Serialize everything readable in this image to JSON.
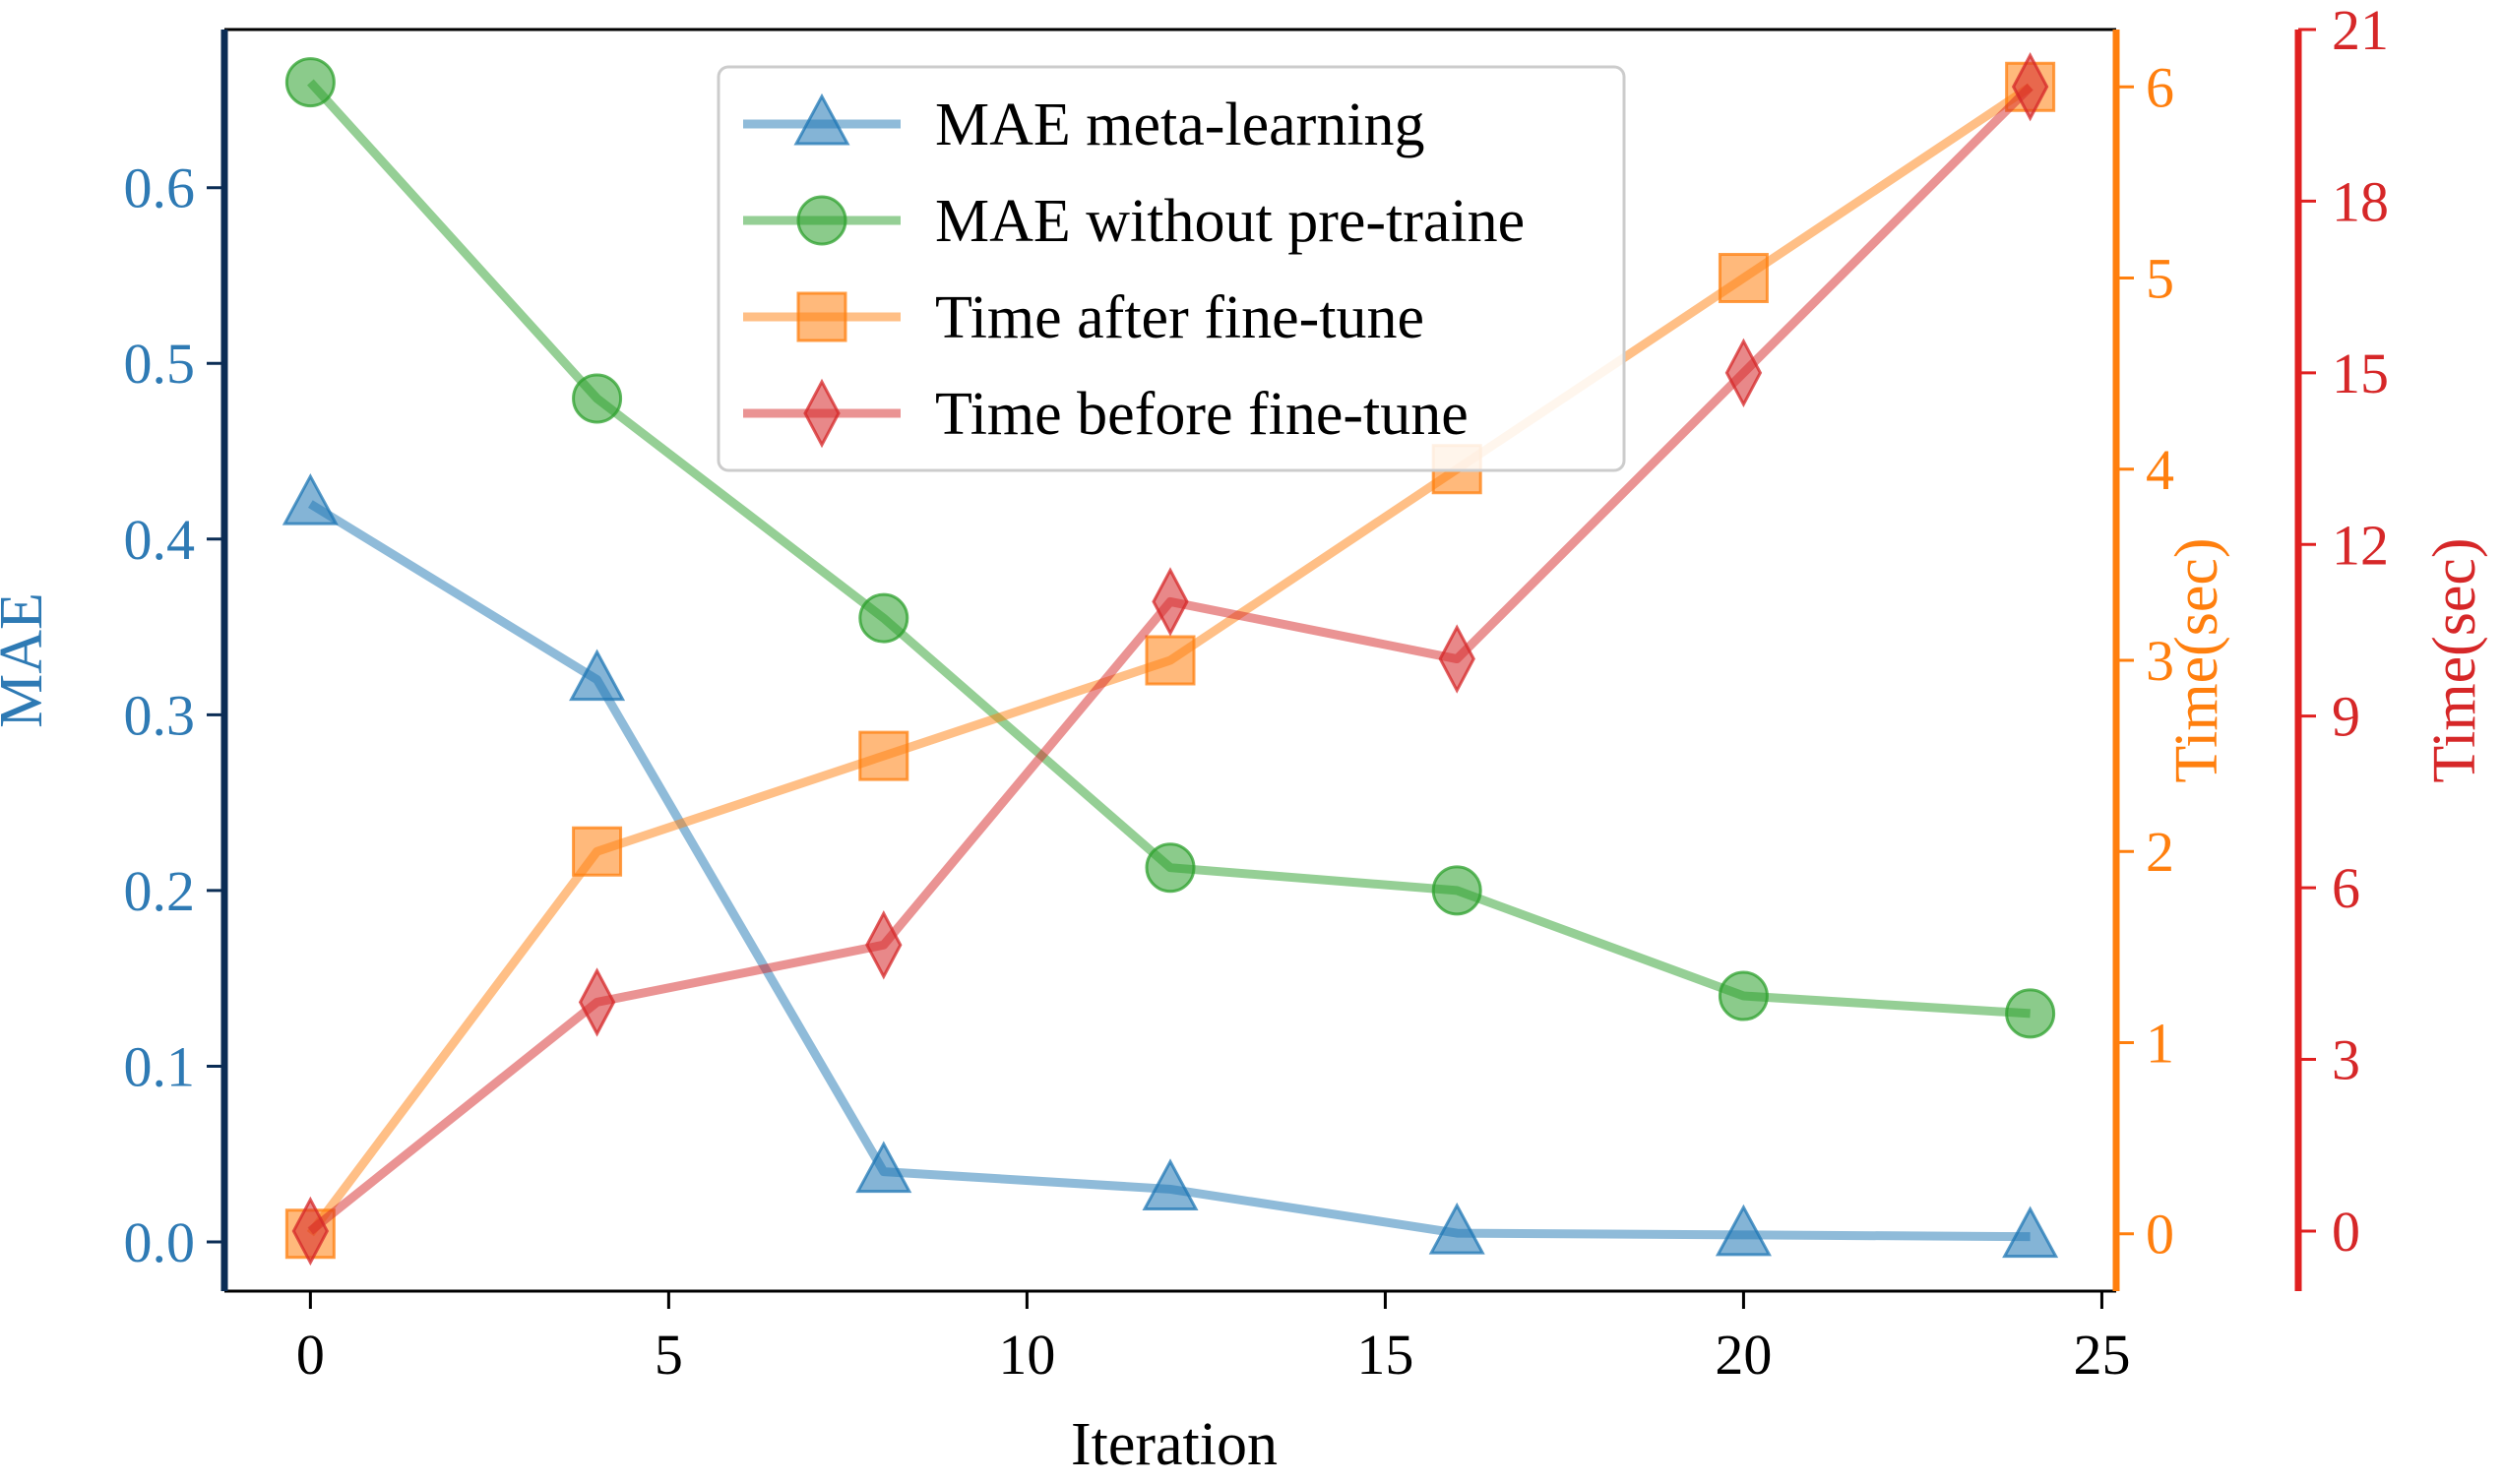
{
  "chart_data": {
    "type": "line",
    "title": "",
    "xlabel": "Iteration",
    "x": [
      0,
      4,
      8,
      12,
      16,
      20,
      24
    ],
    "xlim": [
      -1.2,
      25.2
    ],
    "xticks": [
      0,
      5,
      10,
      15,
      20,
      25
    ],
    "axes": [
      {
        "id": "mae",
        "position": "left",
        "label": "MAE",
        "color": "#2e7ab4",
        "spine_color": "#0b2d55",
        "ylim": [
          -0.028,
          0.69
        ],
        "ticks": [
          0.0,
          0.1,
          0.2,
          0.3,
          0.4,
          0.5,
          0.6
        ],
        "tick_labels": [
          "0.0",
          "0.1",
          "0.2",
          "0.3",
          "0.4",
          "0.5",
          "0.6"
        ]
      },
      {
        "id": "time_orange",
        "position": "right",
        "label": "Time(sec)",
        "color": "#ff7f0e",
        "spine_color": "#ff7f0e",
        "ylim": [
          -0.3,
          6.3
        ],
        "ticks": [
          0,
          1,
          2,
          3,
          4,
          5,
          6
        ],
        "tick_labels": [
          "0",
          "1",
          "2",
          "3",
          "4",
          "5",
          "6"
        ]
      },
      {
        "id": "time_red",
        "position": "right-outer",
        "label": "Time(sec)",
        "color": "#d62728",
        "spine_color": "#e02020",
        "ylim": [
          -1.05,
          21.0
        ],
        "ticks": [
          0,
          3,
          6,
          9,
          12,
          15,
          18,
          21
        ],
        "tick_labels": [
          "0",
          "3",
          "6",
          "9",
          "12",
          "15",
          "18",
          "21"
        ]
      }
    ],
    "series": [
      {
        "name": "MAE meta-learning",
        "axis": "mae",
        "marker": "triangle",
        "color": "#1f77b4",
        "values": [
          0.42,
          0.32,
          0.04,
          0.03,
          0.005,
          0.004,
          0.003
        ]
      },
      {
        "name": "MAE without pre-traine",
        "axis": "mae",
        "marker": "circle",
        "color": "#2ca02c",
        "values": [
          0.66,
          0.48,
          0.355,
          0.213,
          0.2,
          0.14,
          0.13
        ]
      },
      {
        "name": "Time after fine-tune",
        "axis": "time_orange",
        "marker": "square",
        "color": "#ff7f0e",
        "values": [
          0,
          2.0,
          2.5,
          3.0,
          4.0,
          5.0,
          6.0
        ]
      },
      {
        "name": "Time before fine-tune",
        "axis": "time_red",
        "marker": "diamond",
        "color": "#d62728",
        "values": [
          0,
          4.0,
          5.0,
          11.0,
          10.0,
          15.0,
          20.0
        ]
      }
    ],
    "legend": "top-center",
    "grid": false
  }
}
